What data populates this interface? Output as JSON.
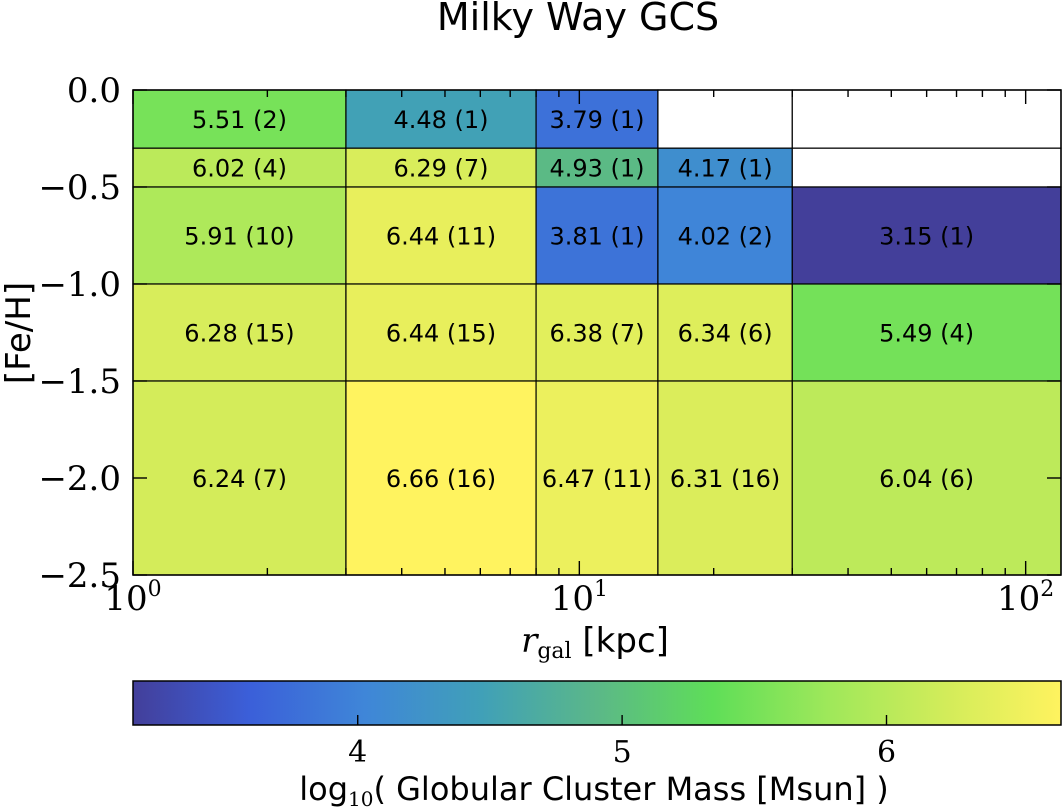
{
  "chart_data": {
    "type": "heatmap",
    "title": "Milky Way GCS",
    "xlabel_symbol": "r",
    "xlabel_subscript": "gal",
    "xlabel_unit": "[kpc]",
    "ylabel": "[Fe/H]",
    "x_scale": "log",
    "xlim": [
      1,
      120
    ],
    "ylim": [
      -2.5,
      0.0
    ],
    "x_ticks": [
      {
        "base": "10",
        "exp": "0",
        "value": 1
      },
      {
        "base": "10",
        "exp": "1",
        "value": 10
      },
      {
        "base": "10",
        "exp": "2",
        "value": 100
      }
    ],
    "y_ticks": [
      {
        "value": 0.0,
        "label": "0.0"
      },
      {
        "value": -0.5,
        "label": "−0.5"
      },
      {
        "value": -1.0,
        "label": "−1.0"
      },
      {
        "value": -1.5,
        "label": "−1.5"
      },
      {
        "value": -2.0,
        "label": "−2.0"
      },
      {
        "value": -2.5,
        "label": "−2.5"
      }
    ],
    "cells": [
      {
        "x0": 1,
        "x1": 3,
        "y0": -0.3,
        "y1": 0.0,
        "value": 5.51,
        "count": 2,
        "label": "5.51 (2)"
      },
      {
        "x0": 3,
        "x1": 8,
        "y0": -0.3,
        "y1": 0.0,
        "value": 4.48,
        "count": 1,
        "label": "4.48 (1)"
      },
      {
        "x0": 8,
        "x1": 15,
        "y0": -0.3,
        "y1": 0.0,
        "value": 3.79,
        "count": 1,
        "label": "3.79 (1)"
      },
      {
        "x0": 15,
        "x1": 30,
        "y0": -0.3,
        "y1": 0.0,
        "value": null,
        "count": 0,
        "label": ""
      },
      {
        "x0": 30,
        "x1": 120,
        "y0": -0.3,
        "y1": 0.0,
        "value": null,
        "count": 0,
        "label": ""
      },
      {
        "x0": 1,
        "x1": 3,
        "y0": -0.5,
        "y1": -0.3,
        "value": 6.02,
        "count": 4,
        "label": "6.02 (4)"
      },
      {
        "x0": 3,
        "x1": 8,
        "y0": -0.5,
        "y1": -0.3,
        "value": 6.29,
        "count": 7,
        "label": "6.29 (7)"
      },
      {
        "x0": 8,
        "x1": 15,
        "y0": -0.5,
        "y1": -0.3,
        "value": 4.93,
        "count": 1,
        "label": "4.93 (1)"
      },
      {
        "x0": 15,
        "x1": 30,
        "y0": -0.5,
        "y1": -0.3,
        "value": 4.17,
        "count": 1,
        "label": "4.17 (1)"
      },
      {
        "x0": 30,
        "x1": 120,
        "y0": -0.5,
        "y1": -0.3,
        "value": null,
        "count": 0,
        "label": ""
      },
      {
        "x0": 1,
        "x1": 3,
        "y0": -1.0,
        "y1": -0.5,
        "value": 5.91,
        "count": 10,
        "label": "5.91 (10)"
      },
      {
        "x0": 3,
        "x1": 8,
        "y0": -1.0,
        "y1": -0.5,
        "value": 6.44,
        "count": 11,
        "label": "6.44 (11)"
      },
      {
        "x0": 8,
        "x1": 15,
        "y0": -1.0,
        "y1": -0.5,
        "value": 3.81,
        "count": 1,
        "label": "3.81 (1)"
      },
      {
        "x0": 15,
        "x1": 30,
        "y0": -1.0,
        "y1": -0.5,
        "value": 4.02,
        "count": 2,
        "label": "4.02 (2)"
      },
      {
        "x0": 30,
        "x1": 120,
        "y0": -1.0,
        "y1": -0.5,
        "value": 3.15,
        "count": 1,
        "label": "3.15 (1)"
      },
      {
        "x0": 1,
        "x1": 3,
        "y0": -1.5,
        "y1": -1.0,
        "value": 6.28,
        "count": 15,
        "label": "6.28 (15)"
      },
      {
        "x0": 3,
        "x1": 8,
        "y0": -1.5,
        "y1": -1.0,
        "value": 6.44,
        "count": 15,
        "label": "6.44 (15)"
      },
      {
        "x0": 8,
        "x1": 15,
        "y0": -1.5,
        "y1": -1.0,
        "value": 6.38,
        "count": 7,
        "label": "6.38 (7)"
      },
      {
        "x0": 15,
        "x1": 30,
        "y0": -1.5,
        "y1": -1.0,
        "value": 6.34,
        "count": 6,
        "label": "6.34 (6)"
      },
      {
        "x0": 30,
        "x1": 120,
        "y0": -1.5,
        "y1": -1.0,
        "value": 5.49,
        "count": 4,
        "label": "5.49 (4)"
      },
      {
        "x0": 1,
        "x1": 3,
        "y0": -2.5,
        "y1": -1.5,
        "value": 6.24,
        "count": 7,
        "label": "6.24 (7)"
      },
      {
        "x0": 3,
        "x1": 8,
        "y0": -2.5,
        "y1": -1.5,
        "value": 6.66,
        "count": 16,
        "label": "6.66 (16)"
      },
      {
        "x0": 8,
        "x1": 15,
        "y0": -2.5,
        "y1": -1.5,
        "value": 6.47,
        "count": 11,
        "label": "6.47 (11)"
      },
      {
        "x0": 15,
        "x1": 30,
        "y0": -2.5,
        "y1": -1.5,
        "value": 6.31,
        "count": 16,
        "label": "6.31 (16)"
      },
      {
        "x0": 30,
        "x1": 120,
        "y0": -2.5,
        "y1": -1.5,
        "value": 6.04,
        "count": 6,
        "label": "6.04 (6)"
      }
    ],
    "colorbar": {
      "label_prefix": "log",
      "label_sub": "10",
      "label_text": "( Globular Cluster Mass [Msun] )",
      "vmin": 3.15,
      "vmax": 6.66,
      "ticks": [
        {
          "value": 4,
          "label": "4"
        },
        {
          "value": 5,
          "label": "5"
        },
        {
          "value": 6,
          "label": "6"
        }
      ],
      "colormap": "viridis-like (dark blue to yellow)",
      "stops": [
        "#433f9a",
        "#3b5fd9",
        "#3f86d8",
        "#40a0b8",
        "#5bb888",
        "#5fde58",
        "#9fe85a",
        "#d2ec5a",
        "#fff35f"
      ]
    }
  }
}
